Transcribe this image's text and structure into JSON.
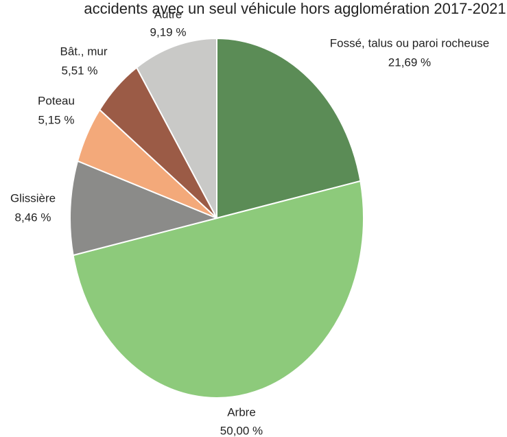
{
  "chart_data": {
    "type": "pie",
    "title": "accidents avec un seul véhicule hors agglomération 2017-2021",
    "categories": [
      "Fossé, talus ou paroi rocheuse",
      "Arbre",
      "Glissière",
      "Poteau",
      "Bât., mur",
      "Autre"
    ],
    "values": [
      21.69,
      50.0,
      8.46,
      5.15,
      5.51,
      9.19
    ],
    "value_labels": [
      "21,69 %",
      "50,00 %",
      "8,46 %",
      "5,15 %",
      "5,51 %",
      "9,19 %"
    ],
    "colors": [
      "#5b8c56",
      "#8dca7b",
      "#8b8b89",
      "#f3a97a",
      "#9b5b46",
      "#c9c9c7"
    ]
  }
}
